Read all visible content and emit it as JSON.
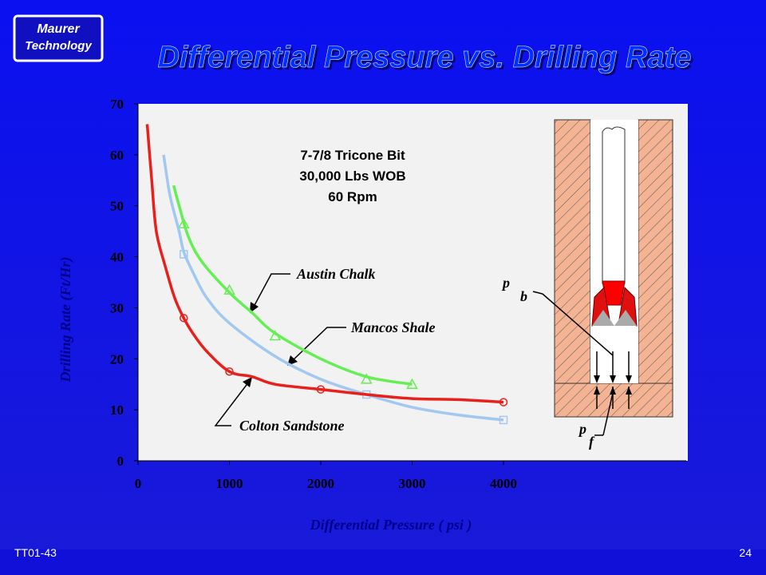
{
  "logo": {
    "line1": "Maurer",
    "line2": "Technology"
  },
  "footer": {
    "code": "TT01-43",
    "page": "24"
  },
  "chart_data": {
    "type": "line",
    "title": "Differential Pressure vs. Drilling Rate",
    "x_label": "Differential Pressure ( psi )",
    "y_label": "Drilling Rate (Ft/Hr)",
    "annotation": [
      "7-7/8   Tricone    Bit",
      "30,000    Lbs   WOB",
      "60 Rpm"
    ],
    "diagram_labels": [
      "p",
      "b",
      "p",
      "f"
    ],
    "xlim": [
      0,
      6000
    ],
    "xticks": [
      0,
      1000,
      2000,
      3000,
      4000
    ],
    "ylim": [
      0,
      70
    ],
    "yticks": [
      0,
      10,
      20,
      30,
      40,
      50,
      60,
      70
    ],
    "series": [
      {
        "name": "Austin Chalk",
        "color": "#66ee55",
        "marker": "triangle",
        "x": [
          390,
          450,
          550,
          700,
          1000,
          1250,
          1500,
          2000,
          2500,
          3000
        ],
        "values": [
          54,
          50,
          44,
          39,
          33,
          29,
          25,
          20,
          16.5,
          15
        ],
        "markers": {
          "x": [
            500,
            1000,
            1500,
            2500,
            3000
          ],
          "values": [
            46.5,
            33.5,
            24.5,
            16,
            15
          ]
        }
      },
      {
        "name": "Mancos    Shale",
        "color": "#a0c8f0",
        "marker": "square",
        "x": [
          280,
          350,
          450,
          500,
          600,
          750,
          1000,
          1500,
          2000,
          2500,
          3000,
          3500,
          4000
        ],
        "values": [
          60,
          52,
          45,
          41,
          37,
          32,
          27,
          20.5,
          16,
          13,
          10.5,
          9,
          8
        ],
        "markers": {
          "x": [
            500,
            2500,
            4000
          ],
          "values": [
            40.5,
            13,
            8
          ]
        }
      },
      {
        "name": "Colton Sandstone",
        "color": "#e8201c",
        "marker": "circle",
        "x": [
          100,
          150,
          200,
          300,
          400,
          500,
          600,
          750,
          1000,
          1250,
          1500,
          2000,
          2500,
          3000,
          3500,
          4000
        ],
        "values": [
          66,
          55,
          45,
          38,
          32,
          28,
          25,
          21.5,
          17.5,
          16.5,
          15,
          14,
          13,
          12.2,
          12,
          11.5
        ],
        "markers": {
          "x": [
            500,
            1000,
            2000,
            4000
          ],
          "values": [
            28,
            17.5,
            14,
            11.5
          ]
        }
      }
    ]
  }
}
